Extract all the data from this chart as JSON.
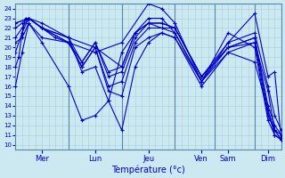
{
  "title": "Température (°c)",
  "ylabel_vals": [
    10,
    11,
    12,
    13,
    14,
    15,
    16,
    17,
    18,
    19,
    20,
    21,
    22,
    23,
    24
  ],
  "ylim": [
    9.5,
    24.5
  ],
  "xlim": [
    0,
    240
  ],
  "bg_color": "#cce8f0",
  "grid_color": "#aaccdd",
  "line_color": "#0000cc",
  "divider_color": "#5588aa",
  "x_tick_positions": [
    24,
    72,
    120,
    168,
    192,
    228
  ],
  "x_tick_labels": [
    "Mer",
    "Lun",
    "Jeu",
    "Ven",
    "Sam",
    "Dim"
  ],
  "x_divider_positions": [
    48,
    96,
    144,
    180,
    216
  ],
  "series": [
    [
      0,
      18,
      3,
      19,
      6,
      21.5,
      9,
      23,
      12,
      23,
      24,
      22,
      48,
      20.5,
      72,
      19.5,
      96,
      20.5,
      120,
      24.5,
      132,
      24,
      144,
      22.5,
      168,
      16.5,
      192,
      20.5,
      216,
      23.5,
      228,
      17,
      234,
      17.5,
      240,
      10.5
    ],
    [
      0,
      19.5,
      6,
      21.5,
      12,
      23,
      24,
      22.5,
      48,
      21,
      60,
      17.5,
      72,
      18,
      84,
      14.5,
      96,
      11.5,
      108,
      18,
      120,
      20.5,
      132,
      21.5,
      144,
      21,
      168,
      16,
      192,
      19.5,
      216,
      18.5,
      228,
      13.5,
      234,
      11.5,
      240,
      10.5
    ],
    [
      0,
      21,
      6,
      22,
      12,
      23,
      24,
      22,
      36,
      21,
      48,
      20.5,
      60,
      18,
      72,
      20,
      84,
      15.5,
      96,
      15,
      108,
      20,
      120,
      21,
      132,
      21.5,
      144,
      21,
      168,
      16.5,
      192,
      21.5,
      216,
      20,
      228,
      12.5,
      234,
      11,
      240,
      10.5
    ],
    [
      0,
      22,
      6,
      22.5,
      12,
      23,
      24,
      22,
      48,
      20.5,
      60,
      18,
      72,
      20,
      84,
      16,
      96,
      16.5,
      108,
      20.5,
      120,
      22,
      132,
      22,
      144,
      21.5,
      168,
      16.5,
      192,
      19.5,
      216,
      20.5,
      228,
      13,
      234,
      11.5,
      240,
      10.5
    ],
    [
      0,
      22.5,
      12,
      23,
      24,
      22,
      48,
      21,
      60,
      18.5,
      72,
      20.5,
      84,
      17,
      96,
      17.5,
      108,
      21,
      120,
      22.5,
      132,
      22.5,
      144,
      22,
      168,
      17,
      192,
      20,
      216,
      21,
      228,
      14,
      234,
      12,
      240,
      11
    ],
    [
      0,
      20.5,
      6,
      21,
      12,
      22.5,
      24,
      21,
      48,
      20.5,
      60,
      18.5,
      72,
      20.5,
      84,
      17.5,
      96,
      18,
      108,
      21.5,
      120,
      22.5,
      132,
      22,
      144,
      22,
      168,
      17,
      192,
      20.5,
      216,
      21.5,
      228,
      16,
      234,
      13,
      240,
      11.5
    ],
    [
      0,
      16,
      6,
      19.5,
      12,
      22.5,
      24,
      20.5,
      48,
      16,
      60,
      12.5,
      72,
      13,
      84,
      14.5,
      96,
      19.5,
      108,
      21.5,
      120,
      23,
      132,
      23,
      144,
      21.5,
      168,
      16.5,
      192,
      20,
      216,
      20.5,
      228,
      15.5,
      234,
      11.5,
      240,
      11
    ],
    [
      0,
      22.5,
      12,
      23,
      24,
      22,
      48,
      21,
      72,
      20,
      96,
      18,
      108,
      21.5,
      120,
      22.5,
      132,
      22.5,
      144,
      22,
      168,
      17,
      192,
      20,
      216,
      21,
      228,
      13.5,
      234,
      11,
      240,
      10.5
    ]
  ]
}
